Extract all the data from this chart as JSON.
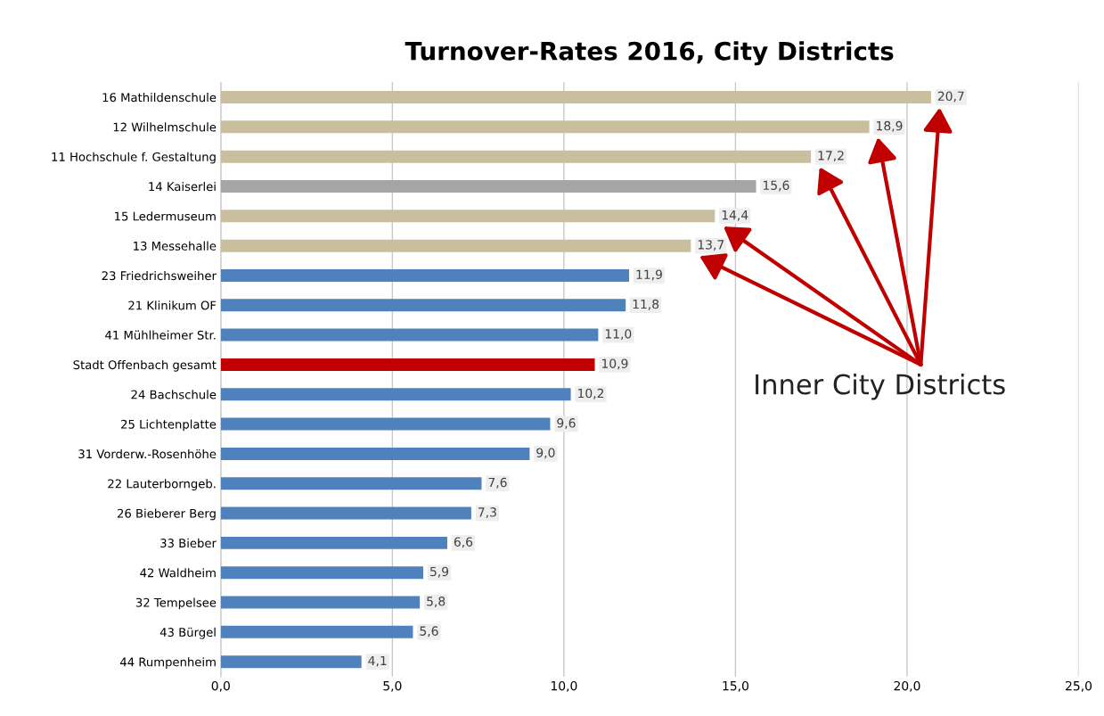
{
  "chart_data": {
    "type": "bar",
    "orientation": "horizontal",
    "title": "Turnover-Rates 2016, City Districts",
    "categories": [
      "16 Mathildenschule",
      "12 Wilhelmschule",
      "11 Hochschule f. Gestaltung",
      "14 Kaiserlei",
      "15 Ledermuseum",
      "13 Messehalle",
      "23 Friedrichsweiher",
      "21 Klinikum OF",
      "41 Mühlheimer Str.",
      "Stadt Offenbach gesamt",
      "24 Bachschule",
      "25 Lichtenplatte",
      "31 Vorderw.-Rosenhöhe",
      "22 Lauterborngeb.",
      "26 Bieberer Berg",
      "33 Bieber",
      "42 Waldheim",
      "32 Tempelsee",
      "43 Bürgel",
      "44 Rumpenheim"
    ],
    "values": [
      20.7,
      18.9,
      17.2,
      15.6,
      14.4,
      13.7,
      11.9,
      11.8,
      11.0,
      10.9,
      10.2,
      9.6,
      9.0,
      7.6,
      7.3,
      6.6,
      5.9,
      5.8,
      5.6,
      4.1
    ],
    "value_labels": [
      "20,7",
      "18,9",
      "17,2",
      "15,6",
      "14,4",
      "13,7",
      "11,9",
      "11,8",
      "11,0",
      "10,9",
      "10,2",
      "9,6",
      "9,0",
      "7,6",
      "7,3",
      "6,6",
      "5,9",
      "5,8",
      "5,6",
      "4,1"
    ],
    "colors": [
      "#c9bf9f",
      "#c9bf9f",
      "#c9bf9f",
      "#a5a5a5",
      "#c9bf9f",
      "#c9bf9f",
      "#4f81bd",
      "#4f81bd",
      "#4f81bd",
      "#c00000",
      "#4f81bd",
      "#4f81bd",
      "#4f81bd",
      "#4f81bd",
      "#4f81bd",
      "#4f81bd",
      "#4f81bd",
      "#4f81bd",
      "#4f81bd",
      "#4f81bd"
    ],
    "xlim": [
      0,
      25
    ],
    "xticks": [
      {
        "value": 0,
        "label": "0,0"
      },
      {
        "value": 5,
        "label": "5,0"
      },
      {
        "value": 10,
        "label": "10,0"
      },
      {
        "value": 15,
        "label": "15,0"
      },
      {
        "value": 20,
        "label": "20,0"
      },
      {
        "value": 25,
        "label": "25,0"
      }
    ],
    "grid": "x",
    "annotations": [
      "Inner City Districts"
    ]
  }
}
